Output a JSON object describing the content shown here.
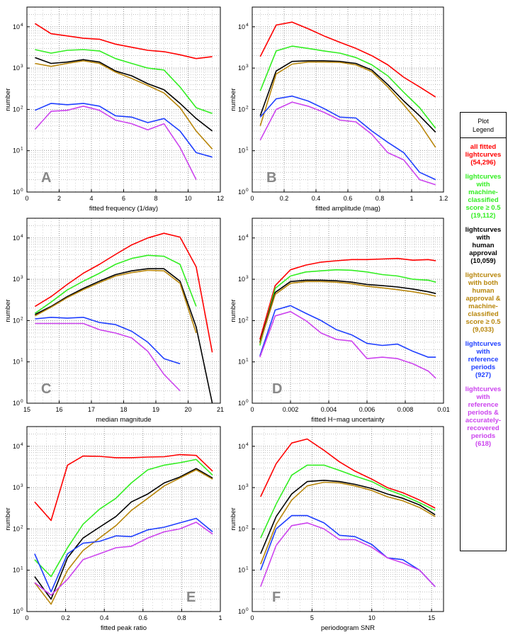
{
  "legend": {
    "title_line1": "Plot",
    "title_line2": "Legend",
    "entries": [
      {
        "lines": [
          "all fitted",
          "lightcurves",
          "(54,296)"
        ],
        "color": "#ff0000"
      },
      {
        "lines": [
          "lightcurves",
          "with",
          "machine-",
          "classified",
          "score ≥ 0.5",
          "(19,112)"
        ],
        "color": "#33ee22"
      },
      {
        "lines": [
          "lightcurves",
          "with",
          "human",
          "approval",
          "(10,059)"
        ],
        "color": "#000000"
      },
      {
        "lines": [
          "lightcurves",
          "with both",
          "human",
          "approval &",
          "machine-",
          "classified",
          "score ≥ 0.5",
          "(9,033)"
        ],
        "color": "#b8860b"
      },
      {
        "lines": [
          "lightcurves",
          "with",
          "reference",
          "periods",
          "(927)"
        ],
        "color": "#1f3fff"
      },
      {
        "lines": [
          "lightcurves",
          "with",
          "reference",
          "periods &",
          "accurately-",
          "recovered",
          "periods",
          "(618)"
        ],
        "color": "#cc44ee"
      }
    ]
  },
  "chart_data": [
    {
      "type": "line",
      "panel_letter": "A",
      "xlabel": "fitted frequency (1/day)",
      "ylabel": "number",
      "xlim": [
        0,
        12
      ],
      "xticks": [
        "0",
        "2",
        "4",
        "6",
        "8",
        "10",
        "12"
      ],
      "xtick_values": [
        0,
        2,
        4,
        6,
        8,
        10,
        12
      ],
      "ylim": [
        1,
        30000
      ],
      "yscale": "log",
      "yticks": [
        "10",
        "10",
        "10",
        "10",
        "10"
      ],
      "ytick_exponents": [
        "0",
        "1",
        "2",
        "3",
        "4"
      ],
      "ytick_values": [
        1,
        10,
        100,
        1000,
        10000
      ],
      "x": [
        0.5,
        1.5,
        2.5,
        3.5,
        4.5,
        5.5,
        6.5,
        7.5,
        8.5,
        9.5,
        10.5,
        11.5
      ],
      "series": [
        {
          "name": "all fitted lightcurves",
          "color": "#ff0000",
          "values": [
            12000,
            6800,
            6000,
            5300,
            5000,
            3800,
            3200,
            2700,
            2500,
            2100,
            1700,
            1900
          ]
        },
        {
          "name": "machine-classified score ≥ 0.5",
          "color": "#33ee22",
          "values": [
            2800,
            2300,
            2700,
            2800,
            2600,
            1700,
            1300,
            1000,
            900,
            350,
            110,
            80
          ]
        },
        {
          "name": "human approval",
          "color": "#000000",
          "values": [
            1800,
            1300,
            1400,
            1600,
            1400,
            850,
            650,
            420,
            300,
            140,
            60,
            30
          ]
        },
        {
          "name": "both human approval & machine-classified",
          "color": "#b8860b",
          "values": [
            1300,
            1100,
            1300,
            1500,
            1300,
            800,
            560,
            380,
            250,
            110,
            30,
            11
          ]
        },
        {
          "name": "reference periods",
          "color": "#1f3fff",
          "values": [
            95,
            140,
            130,
            140,
            120,
            70,
            65,
            48,
            60,
            30,
            9,
            7
          ]
        },
        {
          "name": "accurately-recovered periods",
          "color": "#cc44ee",
          "values": [
            33,
            90,
            95,
            120,
            95,
            55,
            45,
            32,
            45,
            12,
            2,
            null
          ]
        }
      ]
    },
    {
      "type": "line",
      "panel_letter": "B",
      "xlabel": "fitted amplitude (mag)",
      "ylabel": "number",
      "xlim": [
        0,
        1.2
      ],
      "xticks": [
        "0",
        "0.2",
        "0.4",
        "0.6",
        "0.8",
        "1",
        "1.2"
      ],
      "xtick_values": [
        0,
        0.2,
        0.4,
        0.6,
        0.8,
        1,
        1.2
      ],
      "ylim": [
        1,
        30000
      ],
      "yscale": "log",
      "yticks": [
        "10",
        "10",
        "10",
        "10",
        "10"
      ],
      "ytick_exponents": [
        "0",
        "1",
        "2",
        "3",
        "4"
      ],
      "ytick_values": [
        1,
        10,
        100,
        1000,
        10000
      ],
      "x": [
        0.05,
        0.15,
        0.25,
        0.35,
        0.45,
        0.55,
        0.65,
        0.75,
        0.85,
        0.95,
        1.05,
        1.15
      ],
      "series": [
        {
          "name": "all fitted lightcurves",
          "color": "#ff0000",
          "values": [
            1900,
            11000,
            13000,
            9000,
            6000,
            4200,
            3000,
            2000,
            1200,
            600,
            350,
            200
          ]
        },
        {
          "name": "machine-classified score ≥ 0.5",
          "color": "#33ee22",
          "values": [
            280,
            2600,
            3400,
            3000,
            2600,
            2300,
            1800,
            1200,
            650,
            260,
            110,
            35
          ]
        },
        {
          "name": "human approval",
          "color": "#000000",
          "values": [
            70,
            850,
            1450,
            1500,
            1500,
            1450,
            1300,
            900,
            400,
            160,
            70,
            28
          ]
        },
        {
          "name": "both human approval & machine-classified",
          "color": "#b8860b",
          "values": [
            40,
            720,
            1250,
            1400,
            1400,
            1380,
            1200,
            820,
            350,
            130,
            45,
            12
          ]
        },
        {
          "name": "reference periods",
          "color": "#1f3fff",
          "values": [
            65,
            180,
            210,
            160,
            105,
            65,
            62,
            30,
            16,
            9,
            3,
            2
          ]
        },
        {
          "name": "accurately-recovered periods",
          "color": "#cc44ee",
          "values": [
            18,
            100,
            150,
            120,
            85,
            55,
            50,
            25,
            9,
            6,
            2,
            1.5
          ]
        }
      ]
    },
    {
      "type": "line",
      "panel_letter": "C",
      "xlabel": "median magnitude",
      "ylabel": "number",
      "xlim": [
        15,
        21
      ],
      "xticks": [
        "15",
        "16",
        "17",
        "18",
        "19",
        "20",
        "21"
      ],
      "xtick_values": [
        15,
        16,
        17,
        18,
        19,
        20,
        21
      ],
      "ylim": [
        1,
        30000
      ],
      "yscale": "log",
      "yticks": [
        "10",
        "10",
        "10",
        "10",
        "10"
      ],
      "ytick_exponents": [
        "0",
        "1",
        "2",
        "3",
        "4"
      ],
      "ytick_values": [
        1,
        10,
        100,
        1000,
        10000
      ],
      "x": [
        15.25,
        15.75,
        16.25,
        16.75,
        17.25,
        17.75,
        18.25,
        18.75,
        19.25,
        19.75,
        20.25,
        20.75
      ],
      "series": [
        {
          "name": "all fitted lightcurves",
          "color": "#ff0000",
          "values": [
            220,
            380,
            750,
            1400,
            2300,
            4000,
            6800,
            10000,
            13000,
            10500,
            2000,
            17
          ]
        },
        {
          "name": "machine-classified score ≥ 0.5",
          "color": "#33ee22",
          "values": [
            150,
            280,
            550,
            900,
            1400,
            2300,
            3200,
            3800,
            3600,
            2300,
            220,
            null
          ]
        },
        {
          "name": "human approval",
          "color": "#000000",
          "values": [
            140,
            220,
            380,
            600,
            900,
            1300,
            1600,
            1800,
            1800,
            900,
            70,
            1
          ]
        },
        {
          "name": "both human approval & machine-classified",
          "color": "#b8860b",
          "values": [
            130,
            210,
            360,
            560,
            830,
            1200,
            1450,
            1650,
            1600,
            800,
            50,
            null
          ]
        },
        {
          "name": "reference periods",
          "color": "#1f3fff",
          "values": [
            110,
            120,
            115,
            120,
            90,
            80,
            55,
            30,
            12,
            9,
            null,
            null
          ]
        },
        {
          "name": "accurately-recovered periods",
          "color": "#cc44ee",
          "values": [
            85,
            85,
            85,
            85,
            60,
            50,
            38,
            18,
            5,
            2,
            null,
            null
          ]
        }
      ]
    },
    {
      "type": "line",
      "panel_letter": "D",
      "xlabel": "fitted H−mag uncertainty",
      "ylabel": "number",
      "xlim": [
        0,
        0.01
      ],
      "xticks": [
        "0",
        "0.002",
        "0.004",
        "0.006",
        "0.008",
        "0.01"
      ],
      "xtick_values": [
        0,
        0.002,
        0.004,
        0.006,
        0.008,
        0.01
      ],
      "ylim": [
        1,
        30000
      ],
      "yscale": "log",
      "yticks": [
        "10",
        "10",
        "10",
        "10",
        "10"
      ],
      "ytick_exponents": [
        "0",
        "1",
        "2",
        "3",
        "4"
      ],
      "ytick_values": [
        1,
        10,
        100,
        1000,
        10000
      ],
      "x": [
        0.0004,
        0.0012,
        0.002,
        0.0028,
        0.0036,
        0.0044,
        0.0052,
        0.006,
        0.0068,
        0.0076,
        0.0084,
        0.0092,
        0.0096
      ],
      "series": [
        {
          "name": "all fitted lightcurves",
          "color": "#ff0000",
          "values": [
            35,
            700,
            1700,
            2200,
            2600,
            2800,
            3000,
            3000,
            3100,
            3200,
            2900,
            3000,
            2800
          ]
        },
        {
          "name": "machine-classified score ≥ 0.5",
          "color": "#33ee22",
          "values": [
            25,
            600,
            1200,
            1500,
            1600,
            1700,
            1650,
            1500,
            1300,
            1200,
            1000,
            950,
            850
          ]
        },
        {
          "name": "human approval",
          "color": "#000000",
          "values": [
            30,
            480,
            880,
            950,
            950,
            920,
            850,
            750,
            700,
            650,
            580,
            500,
            450
          ]
        },
        {
          "name": "both human approval & machine-classified",
          "color": "#b8860b",
          "values": [
            28,
            430,
            800,
            880,
            880,
            850,
            780,
            680,
            620,
            560,
            500,
            430,
            390
          ]
        },
        {
          "name": "reference periods",
          "color": "#1f3fff",
          "values": [
            14,
            180,
            230,
            150,
            100,
            60,
            45,
            28,
            25,
            27,
            18,
            13,
            13
          ]
        },
        {
          "name": "accurately-recovered periods",
          "color": "#cc44ee",
          "values": [
            13,
            130,
            165,
            100,
            50,
            35,
            32,
            12,
            13,
            12,
            9,
            6,
            4
          ]
        }
      ]
    },
    {
      "type": "line",
      "panel_letter": "E",
      "xlabel": "fitted peak ratio",
      "ylabel": "number",
      "xlim": [
        0,
        1
      ],
      "xticks": [
        "0",
        "0.2",
        "0.4",
        "0.6",
        "0.8",
        "1"
      ],
      "xtick_values": [
        0,
        0.2,
        0.4,
        0.6,
        0.8,
        1
      ],
      "ylim": [
        1,
        30000
      ],
      "yscale": "log",
      "yticks": [
        "10",
        "10",
        "10",
        "10",
        "10"
      ],
      "ytick_exponents": [
        "0",
        "1",
        "2",
        "3",
        "4"
      ],
      "ytick_values": [
        1,
        10,
        100,
        1000,
        10000
      ],
      "x": [
        0.04,
        0.125,
        0.21,
        0.29,
        0.375,
        0.46,
        0.54,
        0.625,
        0.71,
        0.79,
        0.875,
        0.96
      ],
      "series": [
        {
          "name": "all fitted lightcurves",
          "color": "#ff0000",
          "values": [
            450,
            160,
            3500,
            5800,
            5700,
            5300,
            5300,
            5500,
            5600,
            6300,
            6000,
            2500
          ]
        },
        {
          "name": "machine-classified score ≥ 0.5",
          "color": "#33ee22",
          "values": [
            18,
            7,
            35,
            130,
            300,
            550,
            1300,
            2700,
            3500,
            4000,
            4800,
            2000
          ]
        },
        {
          "name": "human approval",
          "color": "#000000",
          "values": [
            7,
            2,
            20,
            60,
            110,
            200,
            450,
            700,
            1300,
            1800,
            2900,
            1700
          ]
        },
        {
          "name": "both human approval & machine-classified",
          "color": "#b8860b",
          "values": [
            5,
            1.5,
            10,
            30,
            60,
            120,
            280,
            550,
            1100,
            1700,
            2700,
            1600
          ]
        },
        {
          "name": "reference periods",
          "color": "#1f3fff",
          "values": [
            25,
            3,
            25,
            45,
            50,
            68,
            65,
            95,
            110,
            140,
            180,
            85
          ]
        },
        {
          "name": "accurately-recovered periods",
          "color": "#cc44ee",
          "values": [
            5,
            2.5,
            6,
            18,
            25,
            35,
            38,
            60,
            85,
            100,
            145,
            75
          ]
        }
      ]
    },
    {
      "type": "line",
      "panel_letter": "F",
      "xlabel": "periodogram SNR",
      "ylabel": "number",
      "xlim": [
        0,
        16
      ],
      "xticks": [
        "0",
        "5",
        "10",
        "15"
      ],
      "xtick_values": [
        0,
        5,
        10,
        15
      ],
      "ylim": [
        1,
        30000
      ],
      "yscale": "log",
      "yticks": [
        "10",
        "10",
        "10",
        "10",
        "10"
      ],
      "ytick_exponents": [
        "0",
        "1",
        "2",
        "3",
        "4"
      ],
      "ytick_values": [
        1,
        10,
        100,
        1000,
        10000
      ],
      "x": [
        0.7,
        2.0,
        3.3,
        4.6,
        6.0,
        7.3,
        8.6,
        10.0,
        11.3,
        12.6,
        14.0,
        15.3
      ],
      "series": [
        {
          "name": "all fitted lightcurves",
          "color": "#ff0000",
          "values": [
            600,
            3800,
            12000,
            15000,
            8000,
            4200,
            2500,
            1600,
            1000,
            750,
            500,
            320
          ]
        },
        {
          "name": "machine-classified score ≥ 0.5",
          "color": "#33ee22",
          "values": [
            60,
            400,
            2000,
            3500,
            3500,
            2600,
            1900,
            1400,
            900,
            650,
            430,
            280
          ]
        },
        {
          "name": "human approval",
          "color": "#000000",
          "values": [
            25,
            200,
            700,
            1400,
            1500,
            1400,
            1200,
            950,
            700,
            550,
            380,
            220
          ]
        },
        {
          "name": "both human approval & machine-classified",
          "color": "#b8860b",
          "values": [
            14,
            130,
            500,
            1100,
            1350,
            1300,
            1100,
            850,
            600,
            480,
            330,
            200
          ]
        },
        {
          "name": "reference periods",
          "color": "#1f3fff",
          "values": [
            10,
            100,
            210,
            210,
            140,
            70,
            65,
            42,
            20,
            18,
            10,
            4
          ]
        },
        {
          "name": "accurately-recovered periods",
          "color": "#cc44ee",
          "values": [
            4,
            40,
            120,
            140,
            100,
            55,
            55,
            36,
            20,
            15,
            10,
            4
          ]
        }
      ]
    }
  ]
}
